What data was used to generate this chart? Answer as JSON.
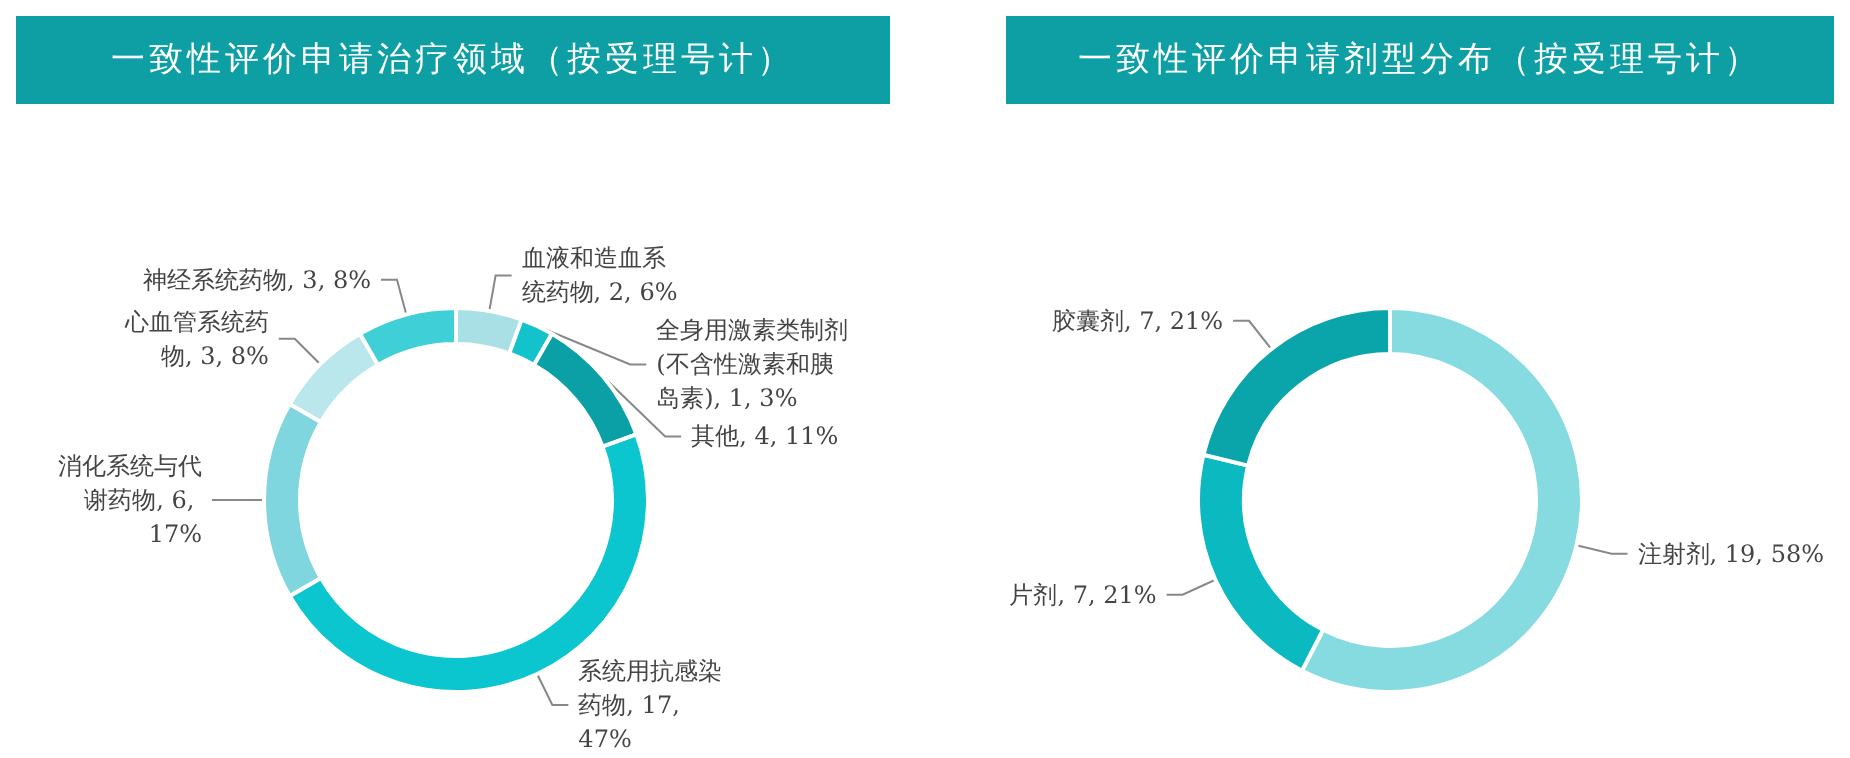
{
  "chart_data": [
    {
      "type": "donut",
      "title": "一致性评价申请治疗领域（按受理号计）",
      "categories": [
        "血液和造血系统药物",
        "全身用激素类制剂(不含性激素和胰岛素)",
        "其他",
        "系统用抗感染药物",
        "消化系统与代谢药物",
        "心血管系统药物",
        "神经系统药物"
      ],
      "values": [
        2,
        1,
        4,
        17,
        6,
        3,
        3
      ],
      "value_labels": [
        "2, 6%",
        "1, 3%",
        "4, 11%",
        "17, 47%",
        "6, 17%",
        "3, 8%",
        "3, 8%"
      ],
      "colors": [
        "#a8e0e6",
        "#12c3cc",
        "#0aa0a6",
        "#0bc5cf",
        "#7fd6de",
        "#b9e7ec",
        "#3fcfd6"
      ]
    },
    {
      "type": "donut",
      "title": "一致性评价申请剂型分布（按受理号计）",
      "categories": [
        "注射剂",
        "片剂",
        "胶囊剂"
      ],
      "values": [
        19,
        7,
        7
      ],
      "value_labels": [
        "19, 58%",
        "7, 21%",
        "7, 21%"
      ],
      "colors": [
        "#86dbe1",
        "#0bb9c0",
        "#0aa5aa"
      ]
    }
  ]
}
